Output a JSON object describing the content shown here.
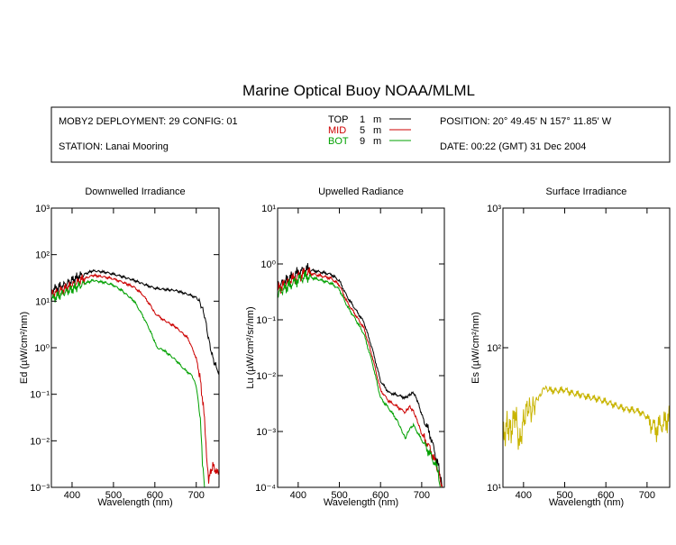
{
  "title": "Marine Optical Buoy NOAA/MLML",
  "header": {
    "deployment": "MOBY2 DEPLOYMENT: 29 CONFIG: 01",
    "station": "STATION: Lanai Mooring",
    "position": "POSITION: 20° 49.45' N   157° 11.85' W",
    "date": "DATE: 00:22 (GMT) 31 Dec 2004",
    "legend": [
      {
        "name": "TOP",
        "depth": "1",
        "unit": "m",
        "color": "#000000"
      },
      {
        "name": "MID",
        "depth": "5",
        "unit": "m",
        "color": "#cc0000"
      },
      {
        "name": "BOT",
        "depth": "9",
        "unit": "m",
        "color": "#00a000"
      }
    ]
  },
  "chart_data": [
    {
      "type": "line",
      "title": "Downwelled Irradiance",
      "xlabel": "Wavelength (nm)",
      "ylabel": "Ed  (µW/cm²/nm)",
      "xlim": [
        350,
        755
      ],
      "ylim": [
        0.001,
        1000
      ],
      "yscale": "log",
      "xticks": [
        "400",
        "500",
        "600",
        "700"
      ],
      "yticks": [
        "10⁻³",
        "10⁻²",
        "10⁻¹",
        "10⁰",
        "10¹",
        "10²",
        "10³"
      ],
      "series": [
        {
          "name": "TOP",
          "color": "#000000",
          "x": [
            350,
            380,
            420,
            450,
            480,
            500,
            520,
            550,
            580,
            600,
            620,
            650,
            680,
            700,
            710,
            720,
            730,
            740,
            750,
            755
          ],
          "y": [
            17,
            22,
            35,
            45,
            42,
            38,
            34,
            28,
            22,
            19,
            18,
            17,
            14,
            12,
            9,
            5,
            1.5,
            0.6,
            0.35,
            0.32
          ]
        },
        {
          "name": "MID",
          "color": "#cc0000",
          "x": [
            350,
            380,
            420,
            450,
            480,
            500,
            520,
            550,
            570,
            590,
            600,
            620,
            650,
            680,
            700,
            710,
            720,
            725,
            730,
            740,
            750,
            755
          ],
          "y": [
            14,
            18,
            28,
            36,
            33,
            30,
            26,
            20,
            14,
            8,
            5.5,
            4,
            2.8,
            1.6,
            0.6,
            0.2,
            0.03,
            0.005,
            0.0015,
            0.003,
            0.002,
            0.002
          ]
        },
        {
          "name": "BOT",
          "color": "#00a000",
          "x": [
            350,
            380,
            420,
            450,
            480,
            500,
            520,
            550,
            570,
            590,
            600,
            605,
            620,
            650,
            670,
            690,
            700,
            710,
            715,
            720
          ],
          "y": [
            11,
            15,
            22,
            28,
            25,
            22,
            17,
            10,
            5,
            2.2,
            1.3,
            1.0,
            0.9,
            0.55,
            0.35,
            0.25,
            0.15,
            0.03,
            0.003,
            0.001
          ]
        }
      ]
    },
    {
      "type": "line",
      "title": "Upwelled Radiance",
      "xlabel": "Wavelength (nm)",
      "ylabel": "Lu  (µW/cm²/sr/nm)",
      "xlim": [
        350,
        755
      ],
      "ylim": [
        0.0001,
        10
      ],
      "yscale": "log",
      "xticks": [
        "400",
        "500",
        "600",
        "700"
      ],
      "yticks": [
        "10⁻⁴",
        "10⁻³",
        "10⁻²",
        "10⁻¹",
        "10⁰",
        "10¹"
      ],
      "series": [
        {
          "name": "TOP",
          "color": "#000000",
          "x": [
            350,
            380,
            400,
            420,
            440,
            460,
            480,
            500,
            520,
            540,
            560,
            580,
            600,
            620,
            640,
            660,
            670,
            680,
            690,
            700,
            720,
            740,
            750
          ],
          "y": [
            0.4,
            0.55,
            0.7,
            0.8,
            0.75,
            0.7,
            0.65,
            0.5,
            0.25,
            0.15,
            0.09,
            0.03,
            0.008,
            0.005,
            0.0045,
            0.004,
            0.0045,
            0.005,
            0.0035,
            0.002,
            0.0009,
            0.00025,
            0.0001
          ]
        },
        {
          "name": "MID",
          "color": "#cc0000",
          "x": [
            350,
            380,
            400,
            420,
            440,
            460,
            480,
            500,
            520,
            540,
            560,
            580,
            600,
            620,
            640,
            660,
            670,
            680,
            690,
            700,
            720,
            740,
            750
          ],
          "y": [
            0.35,
            0.5,
            0.6,
            0.7,
            0.65,
            0.6,
            0.55,
            0.42,
            0.2,
            0.12,
            0.07,
            0.022,
            0.0055,
            0.0035,
            0.0028,
            0.0022,
            0.0028,
            0.0023,
            0.0015,
            0.0009,
            0.0005,
            0.0002,
            0.0001
          ]
        },
        {
          "name": "BOT",
          "color": "#00a000",
          "x": [
            350,
            380,
            400,
            420,
            440,
            460,
            480,
            500,
            520,
            540,
            560,
            580,
            600,
            620,
            640,
            650,
            660,
            670,
            680,
            700,
            720,
            740,
            745
          ],
          "y": [
            0.3,
            0.42,
            0.52,
            0.6,
            0.55,
            0.5,
            0.45,
            0.35,
            0.17,
            0.1,
            0.055,
            0.017,
            0.004,
            0.0026,
            0.0016,
            0.0011,
            0.00075,
            0.0011,
            0.0013,
            0.0007,
            0.0004,
            0.0002,
            0.0001
          ]
        }
      ]
    },
    {
      "type": "line",
      "title": "Surface Irradiance",
      "xlabel": "Wavelength (nm)",
      "ylabel": "Es  (µW/cm²/nm)",
      "xlim": [
        350,
        755
      ],
      "ylim": [
        10,
        1000
      ],
      "yscale": "log",
      "xticks": [
        "400",
        "500",
        "600",
        "700"
      ],
      "yticks": [
        "10¹",
        "10²",
        "10³"
      ],
      "series": [
        {
          "name": "",
          "color": "#c8b400",
          "x": [
            350,
            360,
            370,
            380,
            390,
            400,
            410,
            420,
            430,
            440,
            450,
            460,
            480,
            500,
            520,
            540,
            560,
            580,
            600,
            620,
            640,
            660,
            680,
            700,
            720,
            740,
            755
          ],
          "y": [
            22,
            28,
            25,
            35,
            20,
            30,
            38,
            35,
            42,
            45,
            52,
            50,
            49,
            50,
            47,
            46,
            44,
            43,
            41,
            39,
            37,
            36,
            35,
            32,
            26,
            29,
            31
          ]
        }
      ]
    }
  ]
}
